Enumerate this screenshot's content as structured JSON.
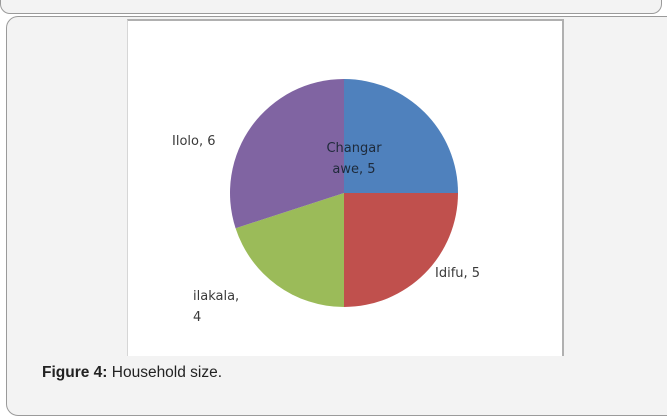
{
  "figure": {
    "label": "Figure 4:",
    "text": " Household size."
  },
  "chart_data": {
    "type": "pie",
    "title": "",
    "slices": [
      {
        "label_lines": [
          "Changar",
          "awe, 5"
        ],
        "value": 5,
        "color": "#4f81bd"
      },
      {
        "label_lines": [
          "Idifu, 5"
        ],
        "value": 5,
        "color": "#c0504d"
      },
      {
        "label_lines": [
          "ilakala,",
          "4"
        ],
        "value": 4,
        "color": "#9bbb59"
      },
      {
        "label_lines": [
          "Ilolo, 6"
        ],
        "value": 6,
        "color": "#8064a2"
      }
    ]
  }
}
